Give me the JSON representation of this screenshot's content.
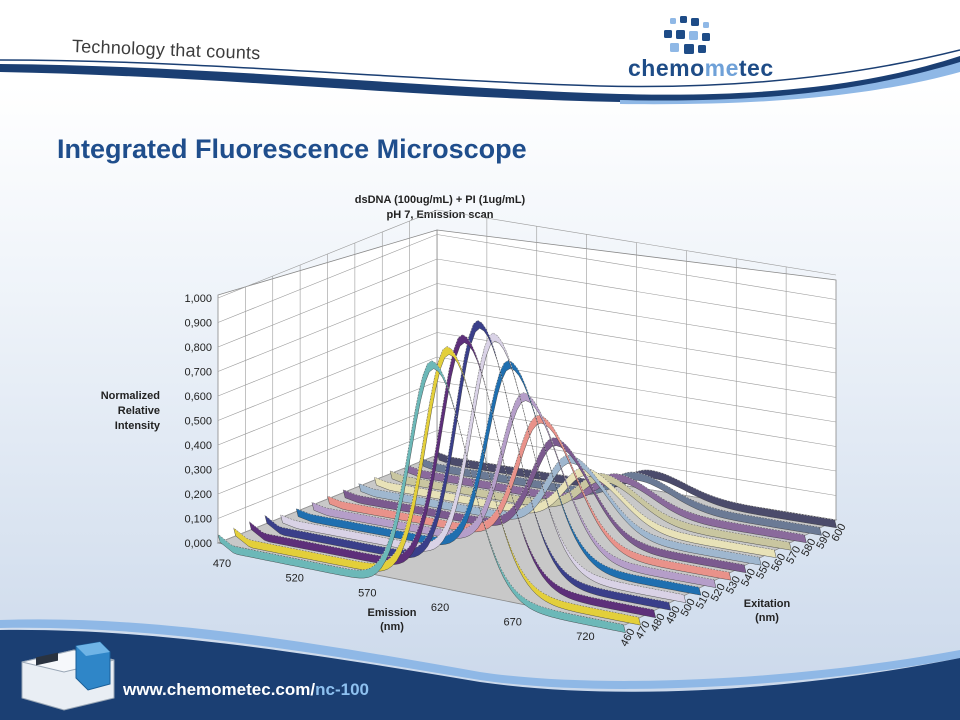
{
  "header": {
    "tagline": "Technology that counts",
    "brand_part1": "chemo",
    "brand_part2": "me",
    "brand_part3": "tec"
  },
  "slide_title": "Integrated Fluorescence Microscope",
  "footer": {
    "url_prefix": "www.chemometec.com/",
    "url_suffix": "nc-100"
  },
  "colors": {
    "title": "#1f4e8c",
    "navy_band": "#1b3f73",
    "light_band": "#8fb8e6"
  },
  "chart_data": {
    "type": "3d-line",
    "title_line1": "dsDNA (100ug/mL) + PI (1ug/mL)",
    "title_line2": "pH 7, Emission scan",
    "zlabel_lines": [
      "Normalized",
      "Relative",
      "Intensity"
    ],
    "xlabel_lines": [
      "Emission",
      "(nm)"
    ],
    "ylabel_lines": [
      "Exitation",
      "(nm)"
    ],
    "z_ticks": [
      "0,000",
      "0,100",
      "0,200",
      "0,300",
      "0,400",
      "0,500",
      "0,600",
      "0,700",
      "0,800",
      "0,900",
      "1,000"
    ],
    "zlim": [
      0,
      1
    ],
    "x_ticks": [
      "470",
      "520",
      "570",
      "620",
      "670",
      "720"
    ],
    "xlim": [
      470,
      750
    ],
    "y_ticks": [
      "460",
      "470",
      "480",
      "490",
      "500",
      "510",
      "520",
      "530",
      "540",
      "550",
      "560",
      "570",
      "580",
      "590",
      "600"
    ],
    "grid": true,
    "series": [
      {
        "excitation": 600,
        "peak_emission": 620,
        "peak": 0.08,
        "color": "#4b4b6b"
      },
      {
        "excitation": 590,
        "peak_emission": 620,
        "peak": 0.1,
        "color": "#6b7a95"
      },
      {
        "excitation": 580,
        "peak_emission": 618,
        "peak": 0.12,
        "color": "#8a6a9c"
      },
      {
        "excitation": 570,
        "peak_emission": 618,
        "peak": 0.15,
        "color": "#c9c6a0"
      },
      {
        "excitation": 560,
        "peak_emission": 617,
        "peak": 0.2,
        "color": "#e8e2b8"
      },
      {
        "excitation": 550,
        "peak_emission": 617,
        "peak": 0.28,
        "color": "#9fb7cf"
      },
      {
        "excitation": 540,
        "peak_emission": 617,
        "peak": 0.38,
        "color": "#7b5a8f"
      },
      {
        "excitation": 530,
        "peak_emission": 617,
        "peak": 0.5,
        "color": "#e9928a"
      },
      {
        "excitation": 520,
        "peak_emission": 617,
        "peak": 0.62,
        "color": "#b59ec9"
      },
      {
        "excitation": 510,
        "peak_emission": 617,
        "peak": 0.78,
        "color": "#1f6fb0"
      },
      {
        "excitation": 500,
        "peak_emission": 617,
        "peak": 0.92,
        "color": "#d9d2e6"
      },
      {
        "excitation": 490,
        "peak_emission": 617,
        "peak": 1.0,
        "color": "#3a3f8a"
      },
      {
        "excitation": 480,
        "peak_emission": 617,
        "peak": 0.97,
        "color": "#5d2f7a"
      },
      {
        "excitation": 470,
        "peak_emission": 617,
        "peak": 0.95,
        "color": "#e3cf3a"
      },
      {
        "excitation": 460,
        "peak_emission": 617,
        "peak": 0.92,
        "color": "#6cb8b8"
      }
    ]
  }
}
